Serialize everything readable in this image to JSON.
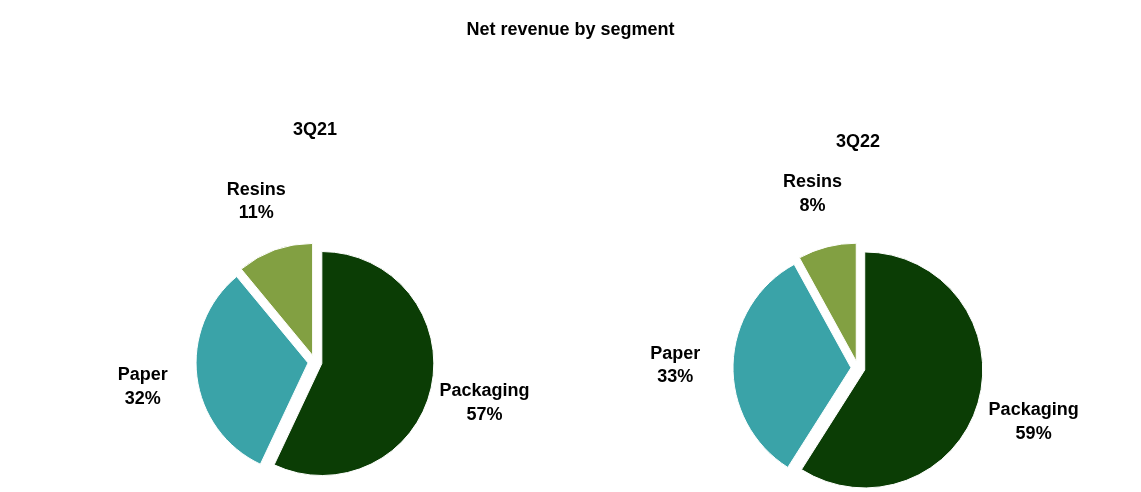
{
  "chart_data": [
    {
      "type": "other",
      "title": "Net revenue by segment"
    },
    {
      "type": "pie",
      "title": "3Q21",
      "categories": [
        "Packaging",
        "Paper",
        "Resins"
      ],
      "values": [
        57,
        32,
        11
      ],
      "colors": [
        "#0b3d05",
        "#3aa3a8",
        "#82a042"
      ],
      "value_labels": [
        "57%",
        "32%",
        "11%"
      ]
    },
    {
      "type": "pie",
      "title": "3Q22",
      "categories": [
        "Packaging",
        "Paper",
        "Resins"
      ],
      "values": [
        59,
        33,
        8
      ],
      "colors": [
        "#0b3d05",
        "#3aa3a8",
        "#82a042"
      ],
      "value_labels": [
        "59%",
        "33%",
        "8%"
      ]
    }
  ]
}
